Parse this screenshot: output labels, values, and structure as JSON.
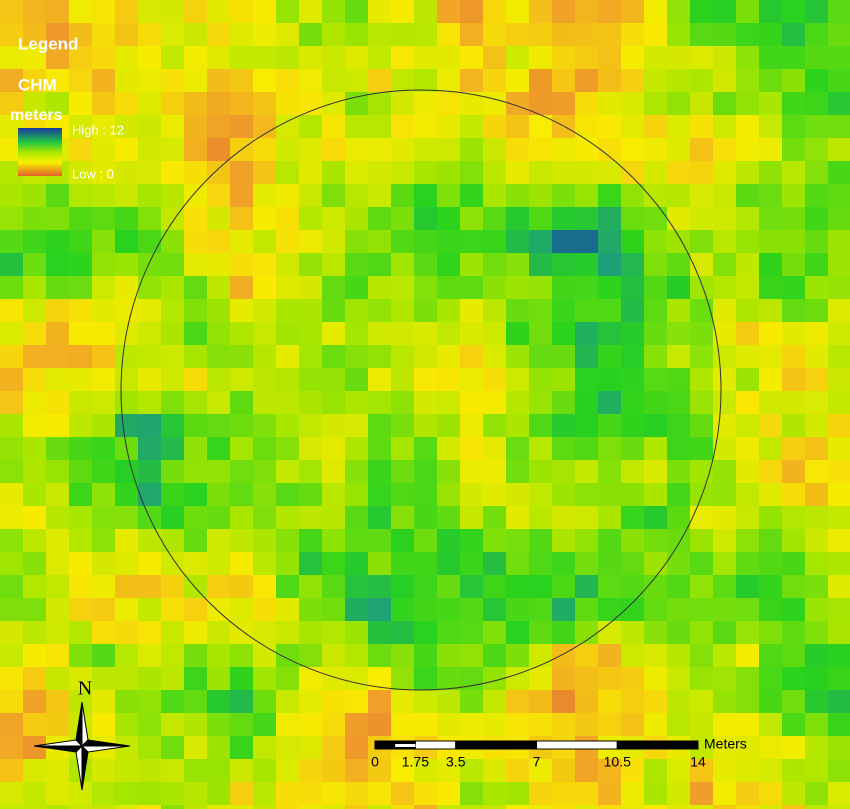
{
  "legend": {
    "title": "Legend",
    "layer": "CHM",
    "unit": "meters",
    "high": "High : 12",
    "low": "Low : 0"
  },
  "north_arrow": {
    "label": "N"
  },
  "scale_bar": {
    "ticks": [
      0,
      1.75,
      3.5,
      7,
      10.5,
      14
    ],
    "unit": "Meters"
  }
}
